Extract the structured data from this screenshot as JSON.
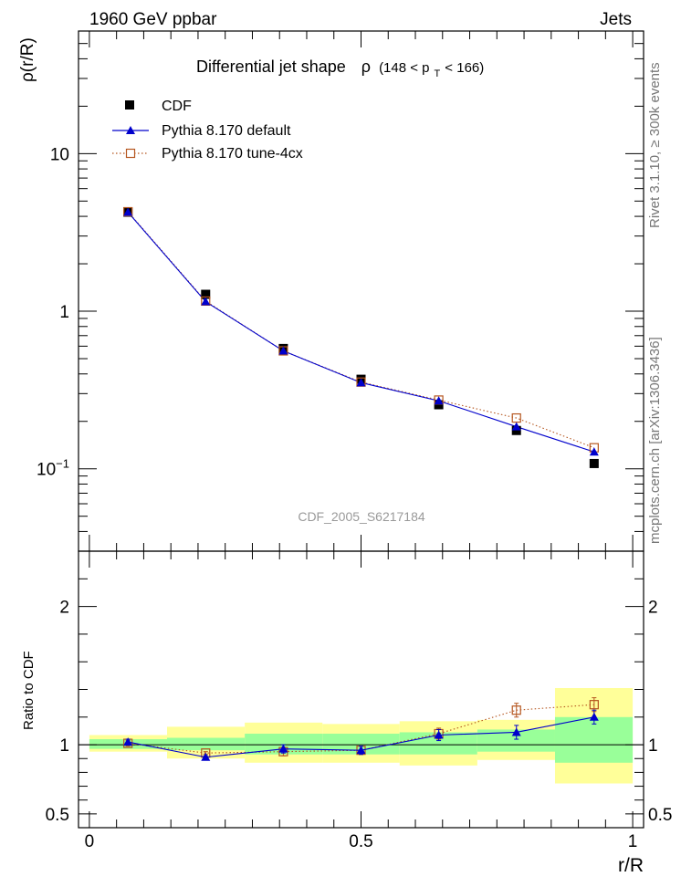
{
  "header": {
    "left": "1960 GeV ppbar",
    "right": "Jets"
  },
  "side_labels": {
    "top": "Rivet 3.1.10, ≥ 300k events",
    "bottom": "mcplots.cern.ch [arXiv:1306.3436]"
  },
  "plot_title": {
    "main": "Differential jet shape",
    "rho": "ρ",
    "range_open": "(148 < p",
    "range_sub": "T",
    "range_close": " < 166)"
  },
  "analysis_label": "CDF_2005_S6217184",
  "chart_data": [
    {
      "type": "scatter",
      "ylabel": "ρ(r/R)",
      "yscale": "log",
      "xlim": [
        -0.02,
        1.02
      ],
      "ylim": [
        0.03,
        60
      ],
      "y_ticks": [
        {
          "v": 0.1,
          "base": "10",
          "exp": "−1"
        },
        {
          "v": 1,
          "base": "1",
          "exp": ""
        },
        {
          "v": 10,
          "base": "10",
          "exp": ""
        }
      ],
      "x": [
        0.071,
        0.214,
        0.357,
        0.5,
        0.643,
        0.786,
        0.929
      ],
      "series": [
        {
          "name": "CDF",
          "values": [
            4.25,
            1.28,
            0.58,
            0.37,
            0.255,
            0.175,
            0.108
          ],
          "color": "#000000",
          "marker": "square-filled"
        },
        {
          "name": "Pythia 8.170 default",
          "values": [
            4.25,
            1.15,
            0.56,
            0.352,
            0.27,
            0.185,
            0.128
          ],
          "color": "#0000cc",
          "marker": "triangle",
          "line": "solid"
        },
        {
          "name": "Pythia 8.170 tune-4cx",
          "values": [
            4.28,
            1.16,
            0.56,
            0.355,
            0.273,
            0.21,
            0.136
          ],
          "color": "#b5561f",
          "marker": "square-open",
          "line": "dotted"
        }
      ],
      "legend": "top-left"
    },
    {
      "type": "scatter",
      "ylabel": "Ratio to CDF",
      "xlabel": "r/R",
      "xlim": [
        -0.02,
        1.02
      ],
      "ylim": [
        0.4,
        2.4
      ],
      "x_ticks": [
        {
          "v": 0,
          "label": "0"
        },
        {
          "v": 0.5,
          "label": "0.5"
        },
        {
          "v": 1,
          "label": "1"
        }
      ],
      "y_ticks": [
        {
          "v": 0.5,
          "label": "0.5"
        },
        {
          "v": 1,
          "label": "1"
        },
        {
          "v": 2,
          "label": "2"
        }
      ],
      "bins": [
        0,
        0.143,
        0.286,
        0.429,
        0.571,
        0.714,
        0.857,
        1.0
      ],
      "band_green": [
        [
          0.97,
          1.04
        ],
        [
          0.96,
          1.05
        ],
        [
          0.93,
          1.08
        ],
        [
          0.93,
          1.08
        ],
        [
          0.93,
          1.09
        ],
        [
          0.95,
          1.11
        ],
        [
          0.87,
          1.2
        ]
      ],
      "band_yellow": [
        [
          0.95,
          1.07
        ],
        [
          0.9,
          1.13
        ],
        [
          0.87,
          1.16
        ],
        [
          0.87,
          1.15
        ],
        [
          0.85,
          1.17
        ],
        [
          0.89,
          1.18
        ],
        [
          0.72,
          1.41
        ]
      ],
      "x": [
        0.071,
        0.214,
        0.357,
        0.5,
        0.643,
        0.786,
        0.929
      ],
      "series": [
        {
          "name": "Pythia 8.170 default",
          "values": [
            1.02,
            0.91,
            0.97,
            0.96,
            1.07,
            1.09,
            1.2
          ],
          "errors": [
            0.02,
            0.01,
            0.03,
            0.03,
            0.04,
            0.05,
            0.05
          ],
          "color": "#0000cc",
          "marker": "triangle",
          "line": "solid"
        },
        {
          "name": "Pythia 8.170 tune-4cx",
          "values": [
            1.01,
            0.94,
            0.95,
            0.96,
            1.08,
            1.25,
            1.29
          ],
          "errors": [
            0.02,
            0.01,
            0.03,
            0.03,
            0.04,
            0.05,
            0.05
          ],
          "color": "#b5561f",
          "marker": "square-open",
          "line": "dotted"
        }
      ]
    }
  ]
}
